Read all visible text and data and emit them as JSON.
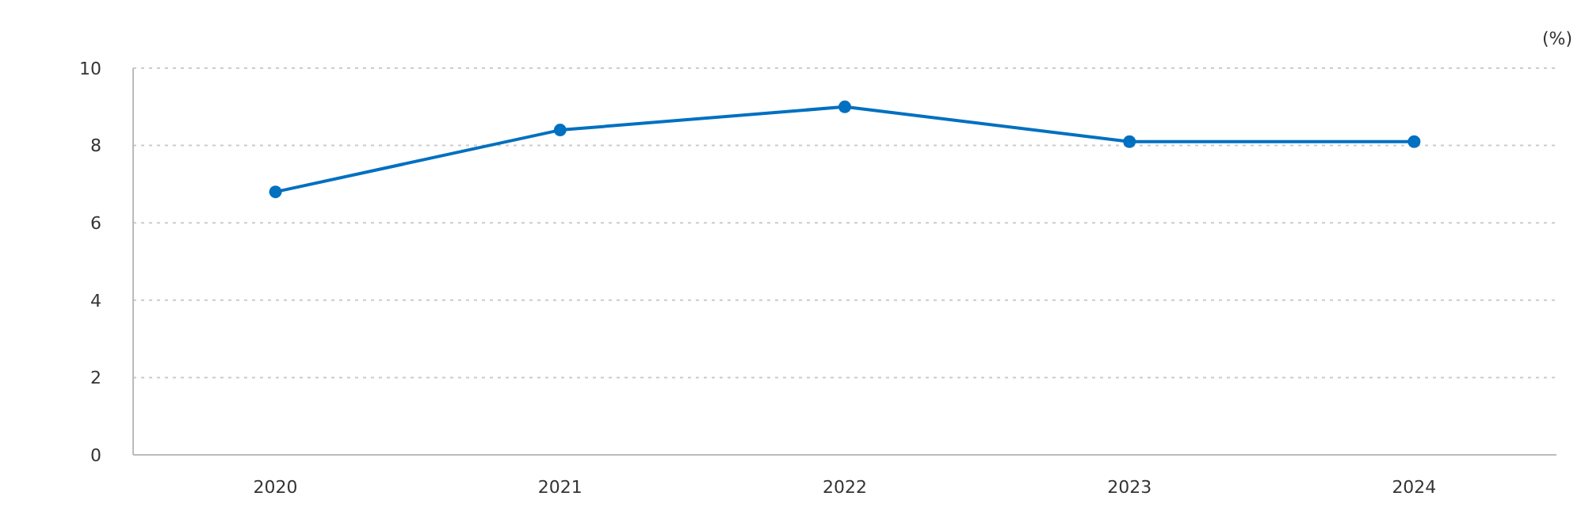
{
  "chart_data": {
    "type": "line",
    "ylabel": "(%)",
    "categories": [
      "2020",
      "2021",
      "2022",
      "2023",
      "2024"
    ],
    "series": [
      {
        "color": "#0070c0",
        "values": [
          6.8,
          8.4,
          9.0,
          8.1,
          8.1
        ]
      }
    ],
    "ylim": [
      0,
      10
    ],
    "yticks": [
      0,
      2,
      4,
      6,
      8,
      10
    ],
    "grid": "y",
    "marker": "circle",
    "line_style": "solid"
  }
}
